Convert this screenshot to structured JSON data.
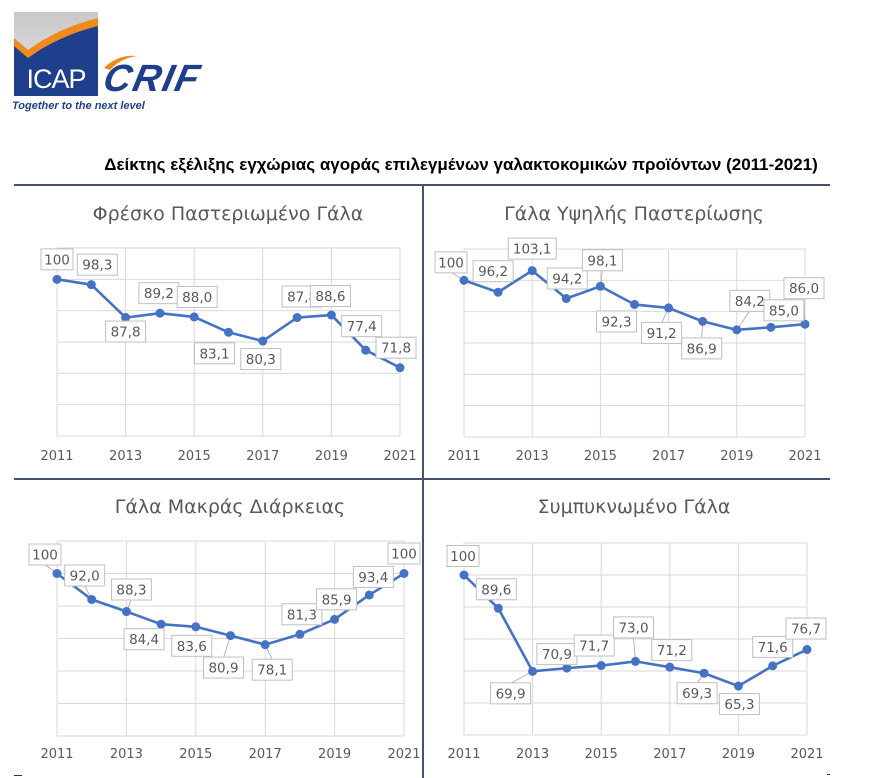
{
  "logo": {
    "primary_text": "ICAP",
    "secondary_text": "CRIF",
    "tagline": "Together to the next level",
    "colors": {
      "navy": "#1e3f8c",
      "orange": "#f08a1c",
      "gray": "#d0d0d0"
    }
  },
  "page": {
    "title": "Δείκτης εξέλιξης εγχώριας αγοράς επιλεγμένων γαλακτοκομικών προϊόντων (2011-2021)"
  },
  "style": {
    "line_color": "#4472C4",
    "grid_color": "#d9d9d9",
    "label_text_color": "#595959",
    "label_border_color": "#bfbfbf",
    "frame_color": "#44546a"
  },
  "chart_data": [
    {
      "type": "line",
      "title": "Φρέσκο Παστεριωμένο Γάλα",
      "x": [
        2011,
        2012,
        2013,
        2014,
        2015,
        2016,
        2017,
        2018,
        2019,
        2020,
        2021
      ],
      "xticks": [
        "2011",
        "2013",
        "2015",
        "2017",
        "2019",
        "2021"
      ],
      "values": [
        100,
        98.3,
        87.8,
        89.2,
        88.0,
        83.1,
        80.3,
        87.8,
        88.6,
        77.4,
        71.8
      ],
      "labels": [
        "100",
        "98,3",
        "87,8",
        "89,2",
        "88,0",
        "83,1",
        "80,3",
        "87,8",
        "88,6",
        "77,4",
        "71,8"
      ],
      "ylim": [
        50,
        110
      ],
      "ystep": 10,
      "grid": true,
      "yaxis_labels_visible": false,
      "xlabel": "",
      "ylabel": ""
    },
    {
      "type": "line",
      "title": "Γάλα Υψηλής Παστερίωσης",
      "x": [
        2011,
        2012,
        2013,
        2014,
        2015,
        2016,
        2017,
        2018,
        2019,
        2020,
        2021
      ],
      "xticks": [
        "2011",
        "2013",
        "2015",
        "2017",
        "2019",
        "2021"
      ],
      "values": [
        100,
        96.2,
        103.1,
        94.2,
        98.1,
        92.3,
        91.2,
        86.9,
        84.2,
        85.0,
        86.0
      ],
      "labels": [
        "100",
        "96,2",
        "103,1",
        "94,2",
        "98,1",
        "92,3",
        "91,2",
        "86,9",
        "84,2",
        "85,0",
        "86,0"
      ],
      "ylim": [
        50,
        110
      ],
      "ystep": 10,
      "grid": true,
      "yaxis_labels_visible": false,
      "xlabel": "",
      "ylabel": ""
    },
    {
      "type": "line",
      "title": "Γάλα Μακράς Διάρκειας",
      "x": [
        2011,
        2012,
        2013,
        2014,
        2015,
        2016,
        2017,
        2018,
        2019,
        2020,
        2021
      ],
      "xticks": [
        "2011",
        "2013",
        "2015",
        "2017",
        "2019",
        "2021"
      ],
      "values": [
        100,
        92.0,
        88.3,
        84.4,
        83.6,
        80.9,
        78.1,
        81.3,
        85.9,
        93.4,
        100
      ],
      "labels": [
        "100",
        "92,0",
        "88,3",
        "84,4",
        "83,6",
        "80,9",
        "78,1",
        "81,3",
        "85,9",
        "93,4",
        "100"
      ],
      "ylim": [
        50,
        110
      ],
      "ystep": 10,
      "grid": true,
      "yaxis_labels_visible": false,
      "xlabel": "",
      "ylabel": ""
    },
    {
      "type": "line",
      "title": "Συμπυκνωμένο Γάλα",
      "x": [
        2011,
        2012,
        2013,
        2014,
        2015,
        2016,
        2017,
        2018,
        2019,
        2020,
        2021
      ],
      "xticks": [
        "2011",
        "2013",
        "2015",
        "2017",
        "2019",
        "2021"
      ],
      "values": [
        100,
        89.6,
        69.9,
        70.9,
        71.7,
        73.0,
        71.2,
        69.3,
        65.3,
        71.6,
        76.7
      ],
      "labels": [
        "100",
        "89,6",
        "69,9",
        "70,9",
        "71,7",
        "73,0",
        "71,2",
        "69,3",
        "65,3",
        "71,6",
        "76,7"
      ],
      "ylim": [
        50,
        110
      ],
      "ystep": 10,
      "grid": true,
      "yaxis_labels_visible": false,
      "xlabel": "",
      "ylabel": ""
    }
  ]
}
